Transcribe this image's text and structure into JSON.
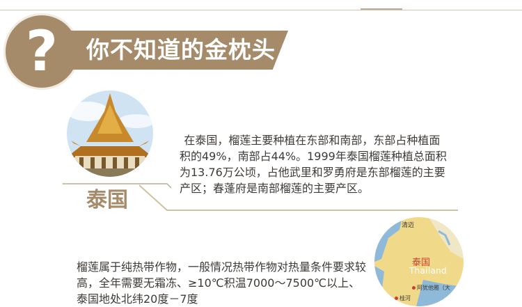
{
  "header": {
    "question_mark": "?",
    "title": "你不知道的金枕头"
  },
  "region": {
    "label": "泰国"
  },
  "paragraphs": {
    "p1": "在泰国，榴莲主要种植在东部和南部，东部占种植面积的49%，南部占44%。1999年泰国榴莲种植总面积为13.76万公顷，占他武里和罗勇府是东部榴莲的主要产区；春蓬府是南部榴莲的主要产区。",
    "p2": "榴莲属于纯热带作物，一般情况热带作物对热量条件要求较高，全年需要无霜冻、≥10℃积温7000～7500℃以上、泰国地处北纬20度－7度"
  },
  "map": {
    "country_cn": "泰国",
    "country_en": "Thailand",
    "place_1": "清迈",
    "place_2": "阿犹他雅（大",
    "place_3": "桂河"
  },
  "colors": {
    "accent": "#a58b6a",
    "text": "#3e3a36",
    "map_red": "#c9402e"
  }
}
